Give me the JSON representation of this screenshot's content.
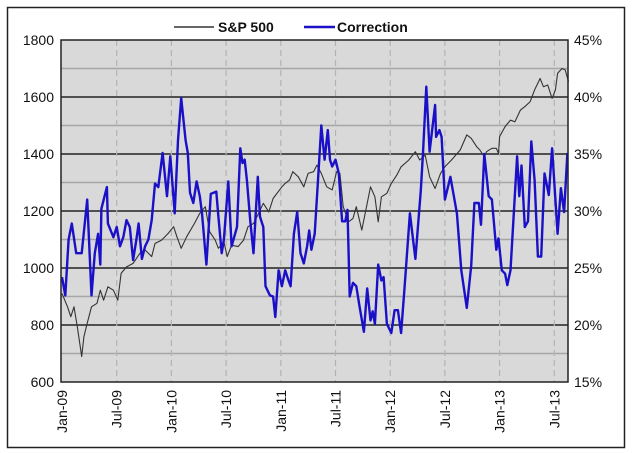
{
  "chart_data": {
    "type": "line",
    "title": "",
    "legend": [
      "S&P 500",
      "Correction"
    ],
    "legend_position": "top-center",
    "x_tick_labels": [
      "Jan-09",
      "Jul-09",
      "Jan-10",
      "Jul-10",
      "Jan-11",
      "Jul-11",
      "Jan-12",
      "Jul-12",
      "Jan-13",
      "Jul-13"
    ],
    "x_range": [
      2009.0,
      2013.63
    ],
    "y_left": {
      "range": [
        600,
        1800
      ],
      "ticks": [
        600,
        800,
        1000,
        1200,
        1400,
        1600,
        1800
      ],
      "tick_labels": [
        "600",
        "800",
        "1000",
        "1200",
        "1400",
        "1600",
        "1800"
      ]
    },
    "y_right": {
      "range": [
        15,
        45
      ],
      "ticks": [
        15,
        20,
        25,
        30,
        35,
        40,
        45
      ],
      "tick_labels": [
        "15%",
        "20%",
        "25%",
        "30%",
        "35%",
        "40%",
        "45%"
      ]
    },
    "grid": true,
    "colors": {
      "sp500": "#333333",
      "correction": "#1a10c8",
      "plot_bg": "#d9d9d9"
    },
    "series": [
      {
        "name": "S&P 500",
        "axis": "left",
        "x": [
          2009.0,
          2009.05,
          2009.08,
          2009.11,
          2009.14,
          2009.18,
          2009.2,
          2009.23,
          2009.27,
          2009.32,
          2009.35,
          2009.38,
          2009.42,
          2009.47,
          2009.51,
          2009.54,
          2009.59,
          2009.65,
          2009.71,
          2009.76,
          2009.82,
          2009.85,
          2009.91,
          2009.97,
          2010.02,
          2010.05,
          2010.09,
          2010.14,
          2010.21,
          2010.26,
          2010.31,
          2010.35,
          2010.4,
          2010.43,
          2010.48,
          2010.51,
          2010.55,
          2010.61,
          2010.66,
          2010.7,
          2010.75,
          2010.79,
          2010.84,
          2010.89,
          2010.93,
          2011.01,
          2011.04,
          2011.08,
          2011.11,
          2011.16,
          2011.21,
          2011.25,
          2011.3,
          2011.33,
          2011.37,
          2011.42,
          2011.47,
          2011.51,
          2011.54,
          2011.57,
          2011.62,
          2011.66,
          2011.69,
          2011.74,
          2011.79,
          2011.82,
          2011.86,
          2011.89,
          2011.92,
          2011.97,
          2012.01,
          2012.06,
          2012.1,
          2012.17,
          2012.23,
          2012.27,
          2012.32,
          2012.36,
          2012.41,
          2012.46,
          2012.5,
          2012.56,
          2012.64,
          2012.7,
          2012.74,
          2012.79,
          2012.82,
          2012.86,
          2012.88,
          2012.93,
          2012.97,
          2012.99,
          2013.0,
          2013.05,
          2013.1,
          2013.14,
          2013.19,
          2013.23,
          2013.28,
          2013.32,
          2013.37,
          2013.4,
          2013.44,
          2013.48,
          2013.51,
          2013.53,
          2013.57,
          2013.6,
          2013.63
        ],
        "values": [
          911,
          864,
          829,
          864,
          794,
          689,
          759,
          806,
          864,
          876,
          922,
          887,
          934,
          922,
          887,
          981,
          1004,
          1016,
          1051,
          1063,
          1040,
          1086,
          1098,
          1121,
          1145,
          1110,
          1069,
          1110,
          1156,
          1192,
          1215,
          1127,
          1098,
          1069,
          1092,
          1040,
          1080,
          1075,
          1098,
          1145,
          1156,
          1186,
          1227,
          1197,
          1244,
          1285,
          1297,
          1309,
          1338,
          1320,
          1285,
          1332,
          1338,
          1361,
          1332,
          1285,
          1274,
          1338,
          1332,
          1215,
          1162,
          1174,
          1215,
          1133,
          1227,
          1285,
          1250,
          1162,
          1250,
          1262,
          1297,
          1326,
          1355,
          1379,
          1408,
          1379,
          1396,
          1320,
          1279,
          1332,
          1355,
          1379,
          1414,
          1467,
          1455,
          1426,
          1414,
          1390,
          1408,
          1420,
          1420,
          1402,
          1461,
          1496,
          1519,
          1513,
          1554,
          1566,
          1584,
          1625,
          1665,
          1636,
          1642,
          1595,
          1625,
          1683,
          1700,
          1695,
          1654
        ]
      },
      {
        "name": "Correction",
        "axis": "right",
        "unit": "%",
        "x": [
          2009.0,
          2009.03,
          2009.06,
          2009.09,
          2009.13,
          2009.18,
          2009.23,
          2009.27,
          2009.3,
          2009.33,
          2009.35,
          2009.36,
          2009.41,
          2009.42,
          2009.47,
          2009.5,
          2009.53,
          2009.56,
          2009.59,
          2009.62,
          2009.65,
          2009.68,
          2009.7,
          2009.73,
          2009.76,
          2009.79,
          2009.82,
          2009.85,
          2009.88,
          2009.92,
          2009.96,
          2009.99,
          2010.03,
          2010.06,
          2010.09,
          2010.13,
          2010.15,
          2010.17,
          2010.2,
          2010.23,
          2010.26,
          2010.28,
          2010.32,
          2010.36,
          2010.41,
          2010.43,
          2010.46,
          2010.48,
          2010.52,
          2010.55,
          2010.6,
          2010.63,
          2010.65,
          2010.67,
          2010.69,
          2010.72,
          2010.75,
          2010.79,
          2010.81,
          2010.84,
          2010.86,
          2010.9,
          2010.93,
          2010.95,
          2010.98,
          2011.01,
          2011.04,
          2011.07,
          2011.09,
          2011.12,
          2011.15,
          2011.18,
          2011.21,
          2011.24,
          2011.26,
          2011.28,
          2011.31,
          2011.34,
          2011.37,
          2011.4,
          2011.43,
          2011.45,
          2011.47,
          2011.5,
          2011.53,
          2011.56,
          2011.59,
          2011.61,
          2011.63,
          2011.66,
          2011.69,
          2011.72,
          2011.76,
          2011.79,
          2011.82,
          2011.84,
          2011.86,
          2011.89,
          2011.92,
          2011.94,
          2011.97,
          2012.01,
          2012.04,
          2012.07,
          2012.1,
          2012.13,
          2012.18,
          2012.23,
          2012.28,
          2012.3,
          2012.33,
          2012.36,
          2012.41,
          2012.42,
          2012.45,
          2012.47,
          2012.5,
          2012.55,
          2012.61,
          2012.65,
          2012.7,
          2012.74,
          2012.77,
          2012.81,
          2012.83,
          2012.86,
          2012.9,
          2012.93,
          2012.97,
          2012.99,
          2013.02,
          2013.05,
          2013.07,
          2013.1,
          2013.16,
          2013.18,
          2013.2,
          2013.23,
          2013.26,
          2013.29,
          2013.32,
          2013.35,
          2013.38,
          2013.41,
          2013.45,
          2013.48,
          2013.53,
          2013.56,
          2013.59,
          2013.62
        ],
        "values": [
          24.2,
          22.6,
          27.5,
          28.9,
          26.3,
          26.3,
          31.0,
          22.6,
          26.3,
          28.0,
          25.3,
          30.2,
          32.1,
          28.9,
          27.7,
          28.6,
          26.9,
          27.7,
          29.2,
          28.6,
          25.7,
          27.5,
          28.9,
          25.8,
          26.9,
          27.5,
          29.2,
          32.4,
          32.1,
          35.1,
          31.3,
          34.8,
          29.8,
          36.2,
          39.9,
          36.2,
          35.1,
          31.6,
          30.7,
          32.6,
          31.3,
          29.8,
          25.3,
          31.5,
          31.7,
          29.5,
          26.3,
          27.5,
          32.6,
          26.9,
          28.6,
          35.5,
          34.2,
          34.5,
          32.7,
          29.2,
          26.3,
          33.0,
          29.5,
          28.6,
          23.4,
          22.6,
          22.5,
          20.7,
          24.8,
          23.4,
          24.8,
          23.9,
          23.4,
          28.0,
          29.9,
          26.3,
          25.4,
          26.9,
          28.3,
          26.6,
          28.0,
          32.7,
          37.5,
          34.5,
          37.1,
          34.5,
          33.9,
          34.5,
          33.3,
          29.1,
          29.1,
          30.1,
          22.5,
          23.7,
          23.4,
          21.6,
          19.4,
          23.2,
          20.4,
          21.2,
          20.1,
          25.3,
          23.9,
          24.2,
          20.1,
          19.3,
          21.3,
          21.3,
          19.3,
          23.1,
          29.8,
          25.8,
          31.8,
          35.1,
          40.9,
          35.2,
          39.3,
          36.5,
          37.1,
          36.5,
          31.0,
          33.0,
          29.8,
          24.8,
          21.5,
          25.2,
          30.7,
          30.7,
          28.8,
          35.0,
          31.3,
          31.0,
          26.6,
          27.6,
          24.8,
          24.5,
          23.5,
          24.8,
          34.8,
          31.3,
          34.0,
          28.6,
          29.1,
          36.1,
          32.7,
          26.0,
          26.0,
          33.3,
          31.4,
          35.5,
          28.0,
          32.0,
          29.9,
          35.1
        ]
      }
    ]
  }
}
